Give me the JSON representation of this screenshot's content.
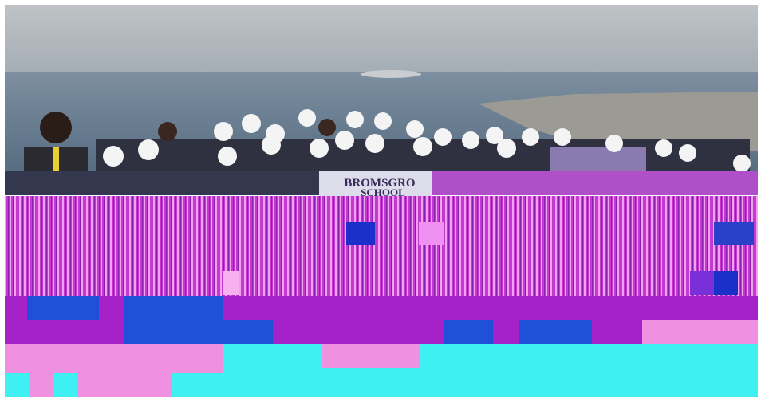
{
  "banner": {
    "line1": "BROMSGRO",
    "line2": "SCHOOL"
  }
}
